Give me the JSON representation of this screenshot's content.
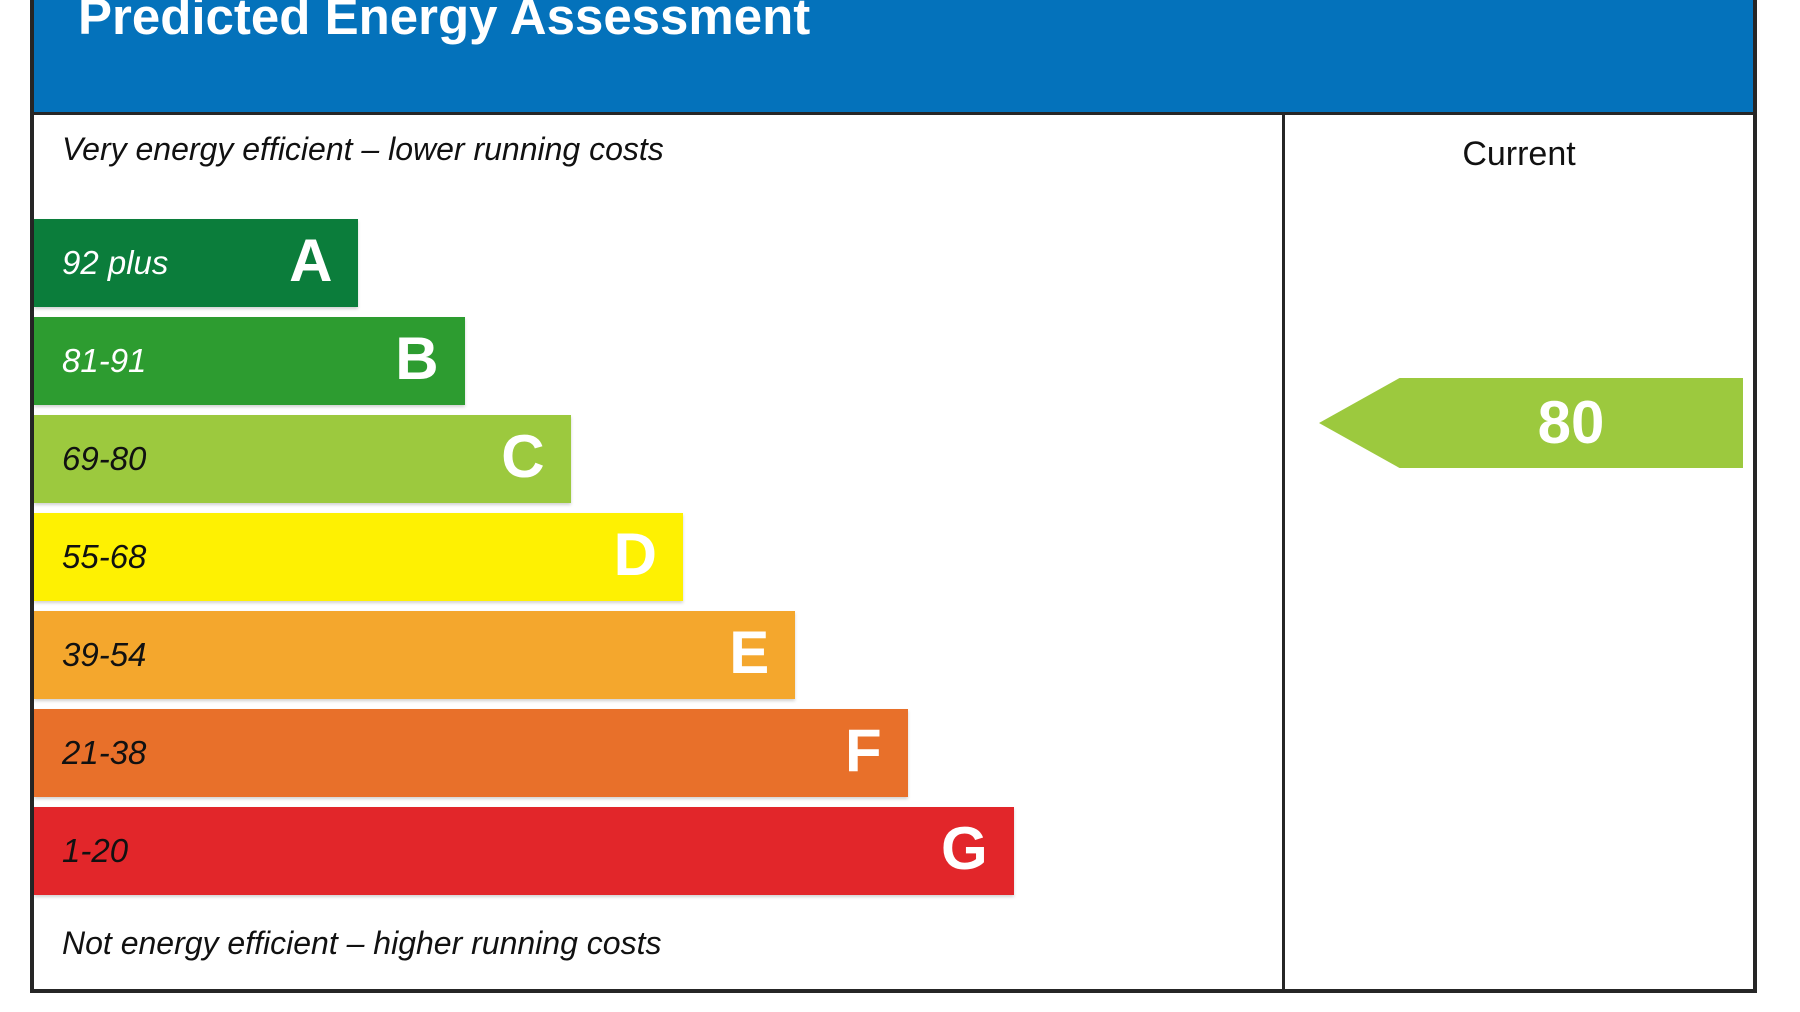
{
  "title": "Predicted Energy Assessment",
  "chart_data": {
    "type": "bar",
    "title": "Predicted Energy Assessment",
    "top_note": "Very energy efficient – lower running costs",
    "bottom_note": "Not energy efficient – higher running costs",
    "column_header": "Current",
    "axis": "SAP energy efficiency rating bands A (best) to G (worst)",
    "bands": [
      {
        "letter": "A",
        "range": "92 plus",
        "score_min": 92,
        "score_max": 100,
        "color": "#0b7d3b",
        "range_text_color": "#ffffff",
        "width_pct": 26
      },
      {
        "letter": "B",
        "range": "81-91",
        "score_min": 81,
        "score_max": 91,
        "color": "#2d9c30",
        "range_text_color": "#ffffff",
        "width_pct": 34.5
      },
      {
        "letter": "C",
        "range": "69-80",
        "score_min": 69,
        "score_max": 80,
        "color": "#9cc93e",
        "range_text_color": "#111111",
        "width_pct": 43
      },
      {
        "letter": "D",
        "range": "55-68",
        "score_min": 55,
        "score_max": 68,
        "color": "#fef102",
        "range_text_color": "#111111",
        "width_pct": 52
      },
      {
        "letter": "E",
        "range": "39-54",
        "score_min": 39,
        "score_max": 54,
        "color": "#f4a72d",
        "range_text_color": "#111111",
        "width_pct": 61
      },
      {
        "letter": "F",
        "range": "21-38",
        "score_min": 21,
        "score_max": 38,
        "color": "#e8702a",
        "range_text_color": "#111111",
        "width_pct": 70
      },
      {
        "letter": "G",
        "range": "1-20",
        "score_min": 1,
        "score_max": 20,
        "color": "#e2262a",
        "range_text_color": "#111111",
        "width_pct": 78.5
      }
    ],
    "current": {
      "value": 80,
      "band": "C",
      "arrow_color": "#9cc93e"
    }
  },
  "colors": {
    "header_bg": "#0472bb",
    "header_text": "#ffffff",
    "border": "#262626"
  }
}
